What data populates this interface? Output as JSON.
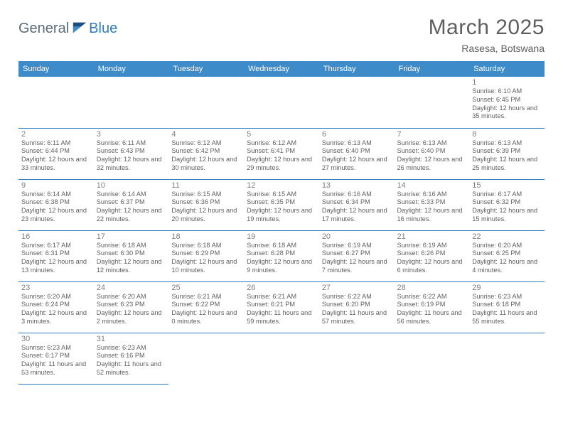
{
  "brand": {
    "part1": "General",
    "part2": "Blue"
  },
  "colors": {
    "header_bg": "#3d8bc8",
    "cell_border": "#2f7bbf",
    "title_color": "#5f5f5f",
    "daynum_color": "#808080",
    "text_color": "#606060",
    "logo_gray": "#5b6b78",
    "logo_blue": "#2f7bbf"
  },
  "title": "March 2025",
  "subtitle": "Rasesa, Botswana",
  "weekdays": [
    "Sunday",
    "Monday",
    "Tuesday",
    "Wednesday",
    "Thursday",
    "Friday",
    "Saturday"
  ],
  "cells": [
    [
      {
        "empty": true
      },
      {
        "empty": true
      },
      {
        "empty": true
      },
      {
        "empty": true
      },
      {
        "empty": true
      },
      {
        "empty": true
      },
      {
        "day": "1",
        "sunrise": "Sunrise: 6:10 AM",
        "sunset": "Sunset: 6:45 PM",
        "daylight": "Daylight: 12 hours and 35 minutes."
      }
    ],
    [
      {
        "day": "2",
        "sunrise": "Sunrise: 6:11 AM",
        "sunset": "Sunset: 6:44 PM",
        "daylight": "Daylight: 12 hours and 33 minutes."
      },
      {
        "day": "3",
        "sunrise": "Sunrise: 6:11 AM",
        "sunset": "Sunset: 6:43 PM",
        "daylight": "Daylight: 12 hours and 32 minutes."
      },
      {
        "day": "4",
        "sunrise": "Sunrise: 6:12 AM",
        "sunset": "Sunset: 6:42 PM",
        "daylight": "Daylight: 12 hours and 30 minutes."
      },
      {
        "day": "5",
        "sunrise": "Sunrise: 6:12 AM",
        "sunset": "Sunset: 6:41 PM",
        "daylight": "Daylight: 12 hours and 29 minutes."
      },
      {
        "day": "6",
        "sunrise": "Sunrise: 6:13 AM",
        "sunset": "Sunset: 6:40 PM",
        "daylight": "Daylight: 12 hours and 27 minutes."
      },
      {
        "day": "7",
        "sunrise": "Sunrise: 6:13 AM",
        "sunset": "Sunset: 6:40 PM",
        "daylight": "Daylight: 12 hours and 26 minutes."
      },
      {
        "day": "8",
        "sunrise": "Sunrise: 6:13 AM",
        "sunset": "Sunset: 6:39 PM",
        "daylight": "Daylight: 12 hours and 25 minutes."
      }
    ],
    [
      {
        "day": "9",
        "sunrise": "Sunrise: 6:14 AM",
        "sunset": "Sunset: 6:38 PM",
        "daylight": "Daylight: 12 hours and 23 minutes."
      },
      {
        "day": "10",
        "sunrise": "Sunrise: 6:14 AM",
        "sunset": "Sunset: 6:37 PM",
        "daylight": "Daylight: 12 hours and 22 minutes."
      },
      {
        "day": "11",
        "sunrise": "Sunrise: 6:15 AM",
        "sunset": "Sunset: 6:36 PM",
        "daylight": "Daylight: 12 hours and 20 minutes."
      },
      {
        "day": "12",
        "sunrise": "Sunrise: 6:15 AM",
        "sunset": "Sunset: 6:35 PM",
        "daylight": "Daylight: 12 hours and 19 minutes."
      },
      {
        "day": "13",
        "sunrise": "Sunrise: 6:16 AM",
        "sunset": "Sunset: 6:34 PM",
        "daylight": "Daylight: 12 hours and 17 minutes."
      },
      {
        "day": "14",
        "sunrise": "Sunrise: 6:16 AM",
        "sunset": "Sunset: 6:33 PM",
        "daylight": "Daylight: 12 hours and 16 minutes."
      },
      {
        "day": "15",
        "sunrise": "Sunrise: 6:17 AM",
        "sunset": "Sunset: 6:32 PM",
        "daylight": "Daylight: 12 hours and 15 minutes."
      }
    ],
    [
      {
        "day": "16",
        "sunrise": "Sunrise: 6:17 AM",
        "sunset": "Sunset: 6:31 PM",
        "daylight": "Daylight: 12 hours and 13 minutes."
      },
      {
        "day": "17",
        "sunrise": "Sunrise: 6:18 AM",
        "sunset": "Sunset: 6:30 PM",
        "daylight": "Daylight: 12 hours and 12 minutes."
      },
      {
        "day": "18",
        "sunrise": "Sunrise: 6:18 AM",
        "sunset": "Sunset: 6:29 PM",
        "daylight": "Daylight: 12 hours and 10 minutes."
      },
      {
        "day": "19",
        "sunrise": "Sunrise: 6:18 AM",
        "sunset": "Sunset: 6:28 PM",
        "daylight": "Daylight: 12 hours and 9 minutes."
      },
      {
        "day": "20",
        "sunrise": "Sunrise: 6:19 AM",
        "sunset": "Sunset: 6:27 PM",
        "daylight": "Daylight: 12 hours and 7 minutes."
      },
      {
        "day": "21",
        "sunrise": "Sunrise: 6:19 AM",
        "sunset": "Sunset: 6:26 PM",
        "daylight": "Daylight: 12 hours and 6 minutes."
      },
      {
        "day": "22",
        "sunrise": "Sunrise: 6:20 AM",
        "sunset": "Sunset: 6:25 PM",
        "daylight": "Daylight: 12 hours and 4 minutes."
      }
    ],
    [
      {
        "day": "23",
        "sunrise": "Sunrise: 6:20 AM",
        "sunset": "Sunset: 6:24 PM",
        "daylight": "Daylight: 12 hours and 3 minutes."
      },
      {
        "day": "24",
        "sunrise": "Sunrise: 6:20 AM",
        "sunset": "Sunset: 6:23 PM",
        "daylight": "Daylight: 12 hours and 2 minutes."
      },
      {
        "day": "25",
        "sunrise": "Sunrise: 6:21 AM",
        "sunset": "Sunset: 6:22 PM",
        "daylight": "Daylight: 12 hours and 0 minutes."
      },
      {
        "day": "26",
        "sunrise": "Sunrise: 6:21 AM",
        "sunset": "Sunset: 6:21 PM",
        "daylight": "Daylight: 11 hours and 59 minutes."
      },
      {
        "day": "27",
        "sunrise": "Sunrise: 6:22 AM",
        "sunset": "Sunset: 6:20 PM",
        "daylight": "Daylight: 11 hours and 57 minutes."
      },
      {
        "day": "28",
        "sunrise": "Sunrise: 6:22 AM",
        "sunset": "Sunset: 6:19 PM",
        "daylight": "Daylight: 11 hours and 56 minutes."
      },
      {
        "day": "29",
        "sunrise": "Sunrise: 6:23 AM",
        "sunset": "Sunset: 6:18 PM",
        "daylight": "Daylight: 11 hours and 55 minutes."
      }
    ],
    [
      {
        "day": "30",
        "sunrise": "Sunrise: 6:23 AM",
        "sunset": "Sunset: 6:17 PM",
        "daylight": "Daylight: 11 hours and 53 minutes."
      },
      {
        "day": "31",
        "sunrise": "Sunrise: 6:23 AM",
        "sunset": "Sunset: 6:16 PM",
        "daylight": "Daylight: 11 hours and 52 minutes."
      },
      {
        "empty": true,
        "noborder": true
      },
      {
        "empty": true,
        "noborder": true
      },
      {
        "empty": true,
        "noborder": true
      },
      {
        "empty": true,
        "noborder": true
      },
      {
        "empty": true,
        "noborder": true
      }
    ]
  ]
}
